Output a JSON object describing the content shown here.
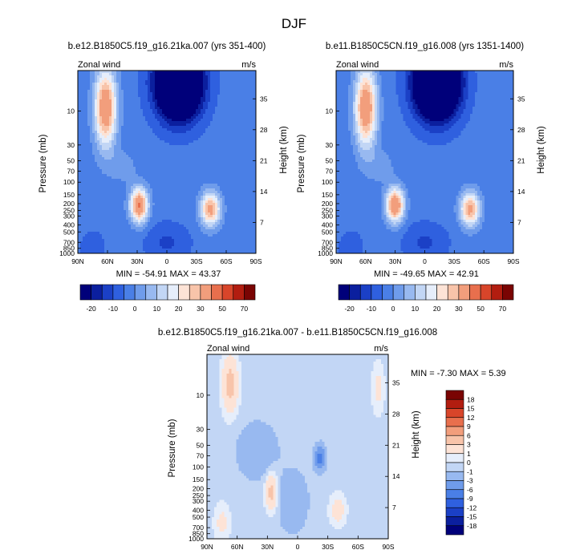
{
  "page_title": "DJF",
  "colors": {
    "full": [
      "#00007a",
      "#0b1f9e",
      "#1b40c6",
      "#2f60df",
      "#4a7fe6",
      "#6f9ceb",
      "#98b9f0",
      "#c2d6f5",
      "#e6eefb",
      "#fde3d6",
      "#f8c4aa",
      "#f29e7c",
      "#e86f4d",
      "#d8452a",
      "#b21d10",
      "#7a0403"
    ],
    "diff": [
      "#00007a",
      "#0b1f9e",
      "#1b40c6",
      "#2f60df",
      "#4a7fe6",
      "#6f9ceb",
      "#98b9f0",
      "#c2d6f5",
      "#e6eefb",
      "#fde3d6",
      "#f8c4aa",
      "#f29e7c",
      "#e86f4d",
      "#d8452a",
      "#b21d10",
      "#7a0403"
    ]
  },
  "panels": [
    {
      "title": "b.e12.B1850C5.f19_g16.21ka.007 (yrs 351-400)",
      "left_label": "Zonal wind",
      "right_label": "m/s",
      "ylabel": "Pressure (mb)",
      "y2label": "Height (km)",
      "stats": "MIN = -54.91   MAX =  43.37",
      "x_ticks": [
        "90N",
        "60N",
        "30N",
        "0",
        "30S",
        "60S",
        "90S"
      ],
      "y_ticks": [
        "10",
        "30",
        "50",
        "70",
        "100",
        "150",
        "200",
        "250",
        "300",
        "400",
        "500",
        "700",
        "850",
        "1000"
      ],
      "y2_ticks": [
        "35",
        "28",
        "21",
        "14",
        "7"
      ],
      "colorbar_labels": [
        "-20",
        "-10",
        "0",
        "10",
        "20",
        "30",
        "50",
        "70"
      ]
    },
    {
      "title": "b.e11.B1850C5CN.f19_g16.008 (yrs 1351-1400)",
      "left_label": "Zonal wind",
      "right_label": "m/s",
      "ylabel": "Pressure (mb)",
      "y2label": "Height (km)",
      "stats": "MIN = -49.65   MAX =  42.91",
      "x_ticks": [
        "90N",
        "60N",
        "30N",
        "0",
        "30S",
        "60S",
        "90S"
      ],
      "y_ticks": [
        "10",
        "30",
        "50",
        "70",
        "100",
        "150",
        "200",
        "250",
        "300",
        "400",
        "500",
        "700",
        "850",
        "1000"
      ],
      "y2_ticks": [
        "35",
        "28",
        "21",
        "14",
        "7"
      ],
      "colorbar_labels": [
        "-20",
        "-10",
        "0",
        "10",
        "20",
        "30",
        "50",
        "70"
      ]
    },
    {
      "title": "b.e12.B1850C5.f19_g16.21ka.007 - b.e11.B1850C5CN.f19_g16.008",
      "left_label": "Zonal wind",
      "right_label": "m/s",
      "ylabel": "Pressure (mb)",
      "y2label": "Height (km)",
      "stats": "MIN =  -7.30   MAX =   5.39",
      "x_ticks": [
        "90N",
        "60N",
        "30N",
        "0",
        "30S",
        "60S",
        "90S"
      ],
      "y_ticks": [
        "10",
        "30",
        "50",
        "70",
        "100",
        "150",
        "200",
        "250",
        "300",
        "400",
        "500",
        "700",
        "850",
        "1000"
      ],
      "y2_ticks": [
        "35",
        "28",
        "21",
        "14",
        "7"
      ],
      "colorbar_labels": [
        "18",
        "15",
        "12",
        "9",
        "6",
        "3",
        "1",
        "0",
        "-1",
        "-3",
        "-6",
        "-9",
        "-12",
        "-15",
        "-18"
      ]
    }
  ],
  "chart_data": [
    {
      "type": "heatmap",
      "title": "b.e12.B1850C5.f19_g16.21ka.007 (yrs 351-400)",
      "xlabel": "",
      "ylabel": "Pressure (mb)",
      "xlim": [
        90,
        -90
      ],
      "ylim": [
        1000,
        3
      ],
      "y_scale": "log",
      "levels": [
        -20,
        -15,
        -10,
        -5,
        0,
        5,
        10,
        15,
        20,
        25,
        30,
        40,
        50,
        60,
        70
      ],
      "min": -54.91,
      "max": 43.37,
      "features": [
        {
          "kind": "jet",
          "lat": 62,
          "p": 10,
          "value": 40
        },
        {
          "kind": "jet",
          "lat": 28,
          "p": 200,
          "value": 43
        },
        {
          "kind": "jet",
          "lat": -45,
          "p": 250,
          "value": 35
        },
        {
          "kind": "easterly",
          "lat": -10,
          "p": 10,
          "value": -55
        }
      ]
    },
    {
      "type": "heatmap",
      "title": "b.e11.B1850C5CN.f19_g16.008 (yrs 1351-1400)",
      "xlabel": "",
      "ylabel": "Pressure (mb)",
      "xlim": [
        90,
        -90
      ],
      "ylim": [
        1000,
        3
      ],
      "y_scale": "log",
      "levels": [
        -20,
        -15,
        -10,
        -5,
        0,
        5,
        10,
        15,
        20,
        25,
        30,
        40,
        50,
        60,
        70
      ],
      "min": -49.65,
      "max": 42.91,
      "features": [
        {
          "kind": "jet",
          "lat": 62,
          "p": 10,
          "value": 38
        },
        {
          "kind": "jet",
          "lat": 30,
          "p": 200,
          "value": 43
        },
        {
          "kind": "jet",
          "lat": -47,
          "p": 250,
          "value": 34
        },
        {
          "kind": "easterly",
          "lat": -10,
          "p": 10,
          "value": -50
        }
      ]
    },
    {
      "type": "heatmap",
      "title": "b.e12.B1850C5.f19_g16.21ka.007 - b.e11.B1850C5CN.f19_g16.008",
      "xlabel": "",
      "ylabel": "Pressure (mb)",
      "xlim": [
        90,
        -90
      ],
      "ylim": [
        1000,
        3
      ],
      "y_scale": "log",
      "levels": [
        -18,
        -15,
        -12,
        -9,
        -6,
        -3,
        -1,
        0,
        1,
        3,
        6,
        9,
        12,
        15,
        18
      ],
      "min": -7.3,
      "max": 5.39,
      "features": [
        {
          "kind": "positive",
          "lat": 65,
          "p": 8,
          "value": 5
        },
        {
          "kind": "positive",
          "lat": 25,
          "p": 200,
          "value": 5
        },
        {
          "kind": "negative",
          "lat": -22,
          "p": 70,
          "value": -7
        }
      ]
    }
  ]
}
